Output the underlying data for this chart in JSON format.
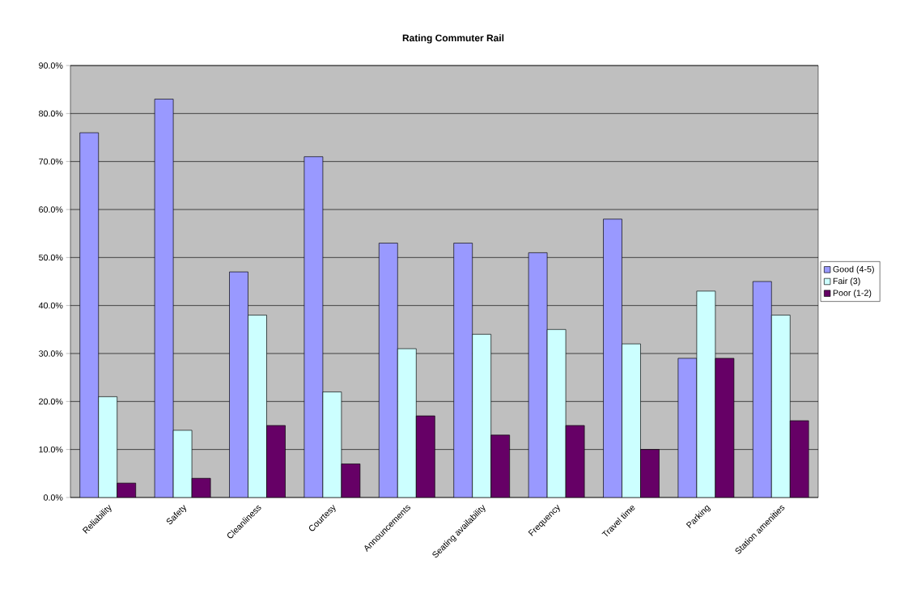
{
  "chart_data": {
    "type": "bar",
    "title": "Rating Commuter Rail",
    "categories": [
      "Reliability",
      "Safety",
      "Cleanliness",
      "Courtesy",
      "Announcements",
      "Seating availability",
      "Frequency",
      "Travel time",
      "Parking",
      "Station amenities"
    ],
    "series": [
      {
        "name": "Good (4-5)",
        "color": "#9999ff",
        "values": [
          76,
          83,
          47,
          71,
          53,
          53,
          51,
          58,
          29,
          45
        ]
      },
      {
        "name": "Fair (3)",
        "color": "#ccffff",
        "values": [
          21,
          14,
          38,
          22,
          31,
          34,
          35,
          32,
          43,
          38
        ]
      },
      {
        "name": "Poor (1-2)",
        "color": "#660066",
        "values": [
          3,
          4,
          15,
          7,
          17,
          13,
          15,
          10,
          29,
          16
        ]
      }
    ],
    "ylim": [
      0,
      90
    ],
    "yticks": [
      {
        "value": 0,
        "label": "0.0%"
      },
      {
        "value": 10,
        "label": "10.0%"
      },
      {
        "value": 20,
        "label": "20.0%"
      },
      {
        "value": 30,
        "label": "30.0%"
      },
      {
        "value": 40,
        "label": "40.0%"
      },
      {
        "value": 50,
        "label": "50.0%"
      },
      {
        "value": 60,
        "label": "60.0%"
      },
      {
        "value": 70,
        "label": "70.0%"
      },
      {
        "value": 80,
        "label": "80.0%"
      },
      {
        "value": 90,
        "label": "90.0%"
      }
    ],
    "grid": "y",
    "legend": "right"
  }
}
